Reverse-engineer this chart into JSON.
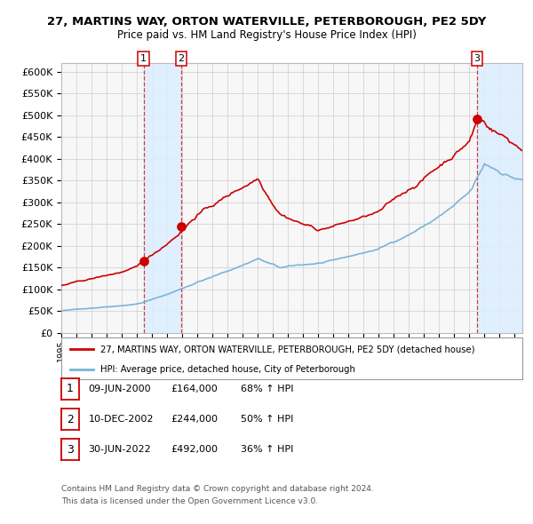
{
  "title": "27, MARTINS WAY, ORTON WATERVILLE, PETERBOROUGH, PE2 5DY",
  "subtitle": "Price paid vs. HM Land Registry's House Price Index (HPI)",
  "legend_line1": "27, MARTINS WAY, ORTON WATERVILLE, PETERBOROUGH, PE2 5DY (detached house)",
  "legend_line2": "HPI: Average price, detached house, City of Peterborough",
  "transactions": [
    {
      "num": 1,
      "date": "09-JUN-2000",
      "date_val": 2000.44,
      "price": 164000,
      "hpi_pct": "68% ↑ HPI"
    },
    {
      "num": 2,
      "date": "10-DEC-2002",
      "date_val": 2002.94,
      "price": 244000,
      "hpi_pct": "50% ↑ HPI"
    },
    {
      "num": 3,
      "date": "30-JUN-2022",
      "date_val": 2022.5,
      "price": 492000,
      "hpi_pct": "36% ↑ HPI"
    }
  ],
  "ylim": [
    0,
    620000
  ],
  "yticks": [
    0,
    50000,
    100000,
    150000,
    200000,
    250000,
    300000,
    350000,
    400000,
    450000,
    500000,
    550000,
    600000
  ],
  "xlim_start": 1995.0,
  "xlim_end": 2025.5,
  "xticks": [
    1995,
    1996,
    1997,
    1998,
    1999,
    2000,
    2001,
    2002,
    2003,
    2004,
    2005,
    2006,
    2007,
    2008,
    2009,
    2010,
    2011,
    2012,
    2013,
    2014,
    2015,
    2016,
    2017,
    2018,
    2019,
    2020,
    2021,
    2022,
    2023,
    2024,
    2025
  ],
  "hpi_color": "#7ab4d8",
  "price_color": "#cc0000",
  "grid_color": "#cccccc",
  "background_color": "#ffffff",
  "plot_bg_color": "#f7f7f7",
  "shade_color": "#ddeeff",
  "footnote1": "Contains HM Land Registry data © Crown copyright and database right 2024.",
  "footnote2": "This data is licensed under the Open Government Licence v3.0."
}
